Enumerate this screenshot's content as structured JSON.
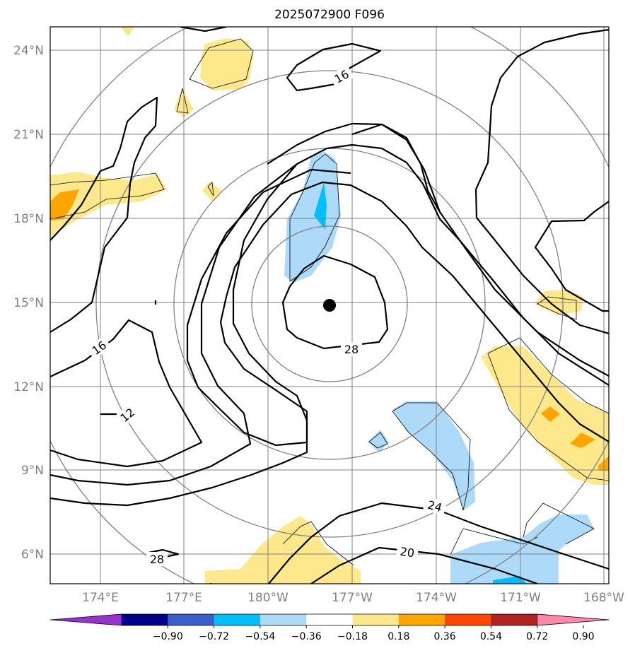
{
  "title": "2025072900 F096",
  "map": {
    "lon_labels": [
      "174°E",
      "177°E",
      "180°W",
      "177°W",
      "174°W",
      "171°W",
      "168°W"
    ],
    "lat_labels": [
      "24°N",
      "21°N",
      "18°N",
      "15°N",
      "12°N",
      "9°N",
      "6°N"
    ],
    "storm_center": {
      "lat": "15°N",
      "lon": "177.8°W"
    },
    "contour_labels": [
      "16",
      "16",
      "12",
      "28",
      "24",
      "20",
      "28"
    ],
    "colors": {
      "gridline": "#808080",
      "range_rings": "#808080",
      "contours": "#000000",
      "neg_weak": "#addaf8",
      "neg_mod": "#00bfff",
      "pos_weak": "#fde98b",
      "pos_mod": "#ffa500",
      "pos_strong": "#ff4500"
    }
  },
  "colorbar": {
    "tick_labels": [
      "−0.90",
      "−0.72",
      "−0.54",
      "−0.36",
      "−0.18",
      "0.18",
      "0.36",
      "0.54",
      "0.72",
      "0.90"
    ],
    "colors": [
      "#9932cc",
      "#00008b",
      "#3a5fcd",
      "#00bfff",
      "#addaf8",
      "#ffffff",
      "#fde98b",
      "#ffa500",
      "#ff4500",
      "#b22222",
      "#ff88aa"
    ]
  }
}
